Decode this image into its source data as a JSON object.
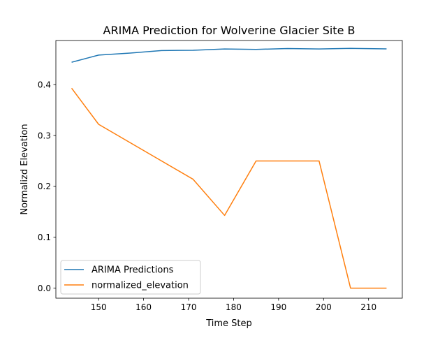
{
  "chart_data": {
    "type": "line",
    "title": "ARIMA Prediction for Wolverine Glacier Site B",
    "xlabel": "Time Step",
    "ylabel": "Normalizd Elevation",
    "xlim": [
      140.5,
      217.5
    ],
    "ylim": [
      -0.0197,
      0.4867
    ],
    "xticks": [
      150,
      160,
      170,
      180,
      190,
      200,
      210
    ],
    "xtick_labels": [
      "150",
      "160",
      "170",
      "180",
      "190",
      "200",
      "210"
    ],
    "yticks": [
      0.0,
      0.1,
      0.2,
      0.3,
      0.4
    ],
    "ytick_labels": [
      "0.0",
      "0.1",
      "0.2",
      "0.3",
      "0.4"
    ],
    "grid": false,
    "legend_position": "lower-left",
    "series": [
      {
        "name": "ARIMA Predictions",
        "color": "#1f77b4",
        "x": [
          144,
          150,
          157,
          164,
          171,
          178,
          185,
          192,
          199,
          206,
          214
        ],
        "y": [
          0.444,
          0.458,
          0.462,
          0.467,
          0.4675,
          0.47,
          0.4692,
          0.471,
          0.47,
          0.4712,
          0.4703
        ]
      },
      {
        "name": "normalized_elevation",
        "color": "#ff7f0e",
        "x": [
          144,
          150,
          157,
          164,
          171,
          178,
          185,
          192,
          199,
          206,
          214
        ],
        "y": [
          0.393,
          0.322,
          0.286,
          0.25,
          0.214,
          0.143,
          0.25,
          0.25,
          0.25,
          0.0,
          0.0
        ]
      }
    ]
  }
}
